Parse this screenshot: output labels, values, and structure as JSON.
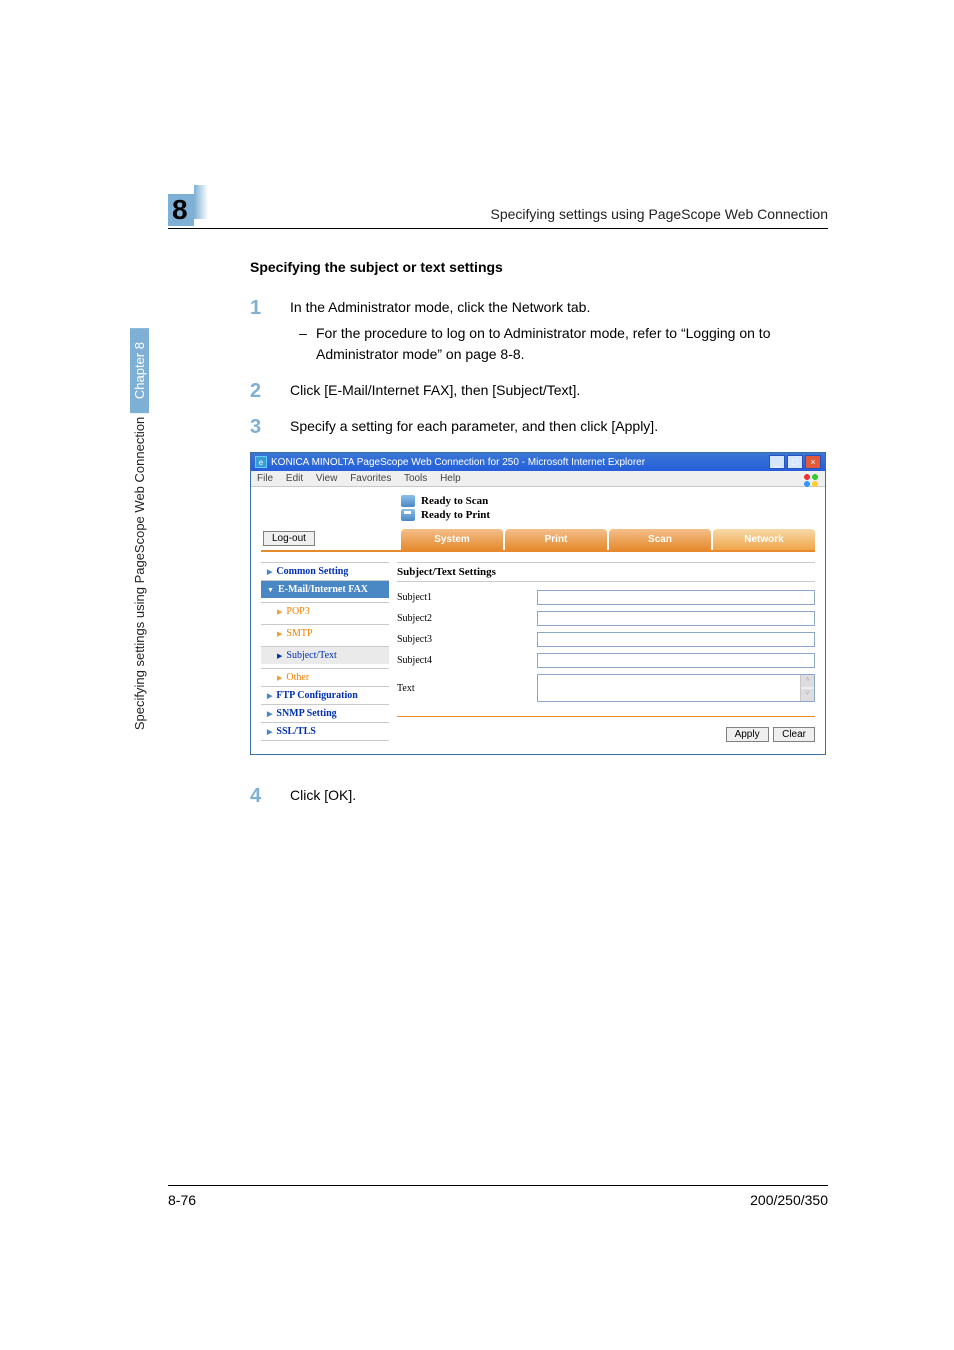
{
  "header": {
    "chapter_number": "8",
    "running_head": "Specifying settings using PageScope Web Connection"
  },
  "section": {
    "heading": "Specifying the subject or text settings"
  },
  "steps": [
    {
      "n": "1",
      "text": "In the Administrator mode, click the Network tab.",
      "sub": "For the procedure to log on to Administrator mode, refer to “Logging on to Administrator mode” on page 8-8."
    },
    {
      "n": "2",
      "text": "Click [E-Mail/Internet FAX], then [Subject/Text]."
    },
    {
      "n": "3",
      "text": "Specify a setting for each parameter, and then click [Apply]."
    }
  ],
  "screenshot": {
    "ie_title": "KONICA MINOLTA PageScope Web Connection for 250 - Microsoft Internet Explorer",
    "menus": [
      "File",
      "Edit",
      "View",
      "Favorites",
      "Tools",
      "Help"
    ],
    "status": {
      "scan": "Ready to Scan",
      "print": "Ready to Print"
    },
    "logout": "Log-out",
    "tabs": [
      "System",
      "Print",
      "Scan",
      "Network"
    ],
    "tabs_active_index": 3,
    "sidebar": [
      {
        "label": "Common Setting",
        "type": "top"
      },
      {
        "label": "E-Mail/Internet FAX",
        "type": "group"
      },
      {
        "label": "POP3",
        "type": "sub"
      },
      {
        "label": "SMTP",
        "type": "sub"
      },
      {
        "label": "Subject/Text",
        "type": "sub_active"
      },
      {
        "label": "Other",
        "type": "sub"
      },
      {
        "label": "FTP Configuration",
        "type": "top"
      },
      {
        "label": "SNMP Setting",
        "type": "top"
      },
      {
        "label": "SSL/TLS",
        "type": "top"
      }
    ],
    "panel": {
      "title": "Subject/Text Settings",
      "rows": [
        {
          "label": "Subject1",
          "type": "input"
        },
        {
          "label": "Subject2",
          "type": "input"
        },
        {
          "label": "Subject3",
          "type": "input"
        },
        {
          "label": "Subject4",
          "type": "input"
        },
        {
          "label": "Text",
          "type": "textarea"
        }
      ],
      "apply": "Apply",
      "clear": "Clear"
    },
    "colors": {
      "tab_bg": "#e68a2e",
      "titlebar": "#245edb",
      "sidebar_group": "#4a88c5",
      "link_blue": "#0030b0",
      "orange_text": "#f08000"
    }
  },
  "step4": {
    "n": "4",
    "text": "Click [OK]."
  },
  "side_vertical": {
    "chapter_label": "Chapter 8",
    "running": "Specifying settings using PageScope Web Connection"
  },
  "footer": {
    "left": "8-76",
    "right": "200/250/350"
  }
}
